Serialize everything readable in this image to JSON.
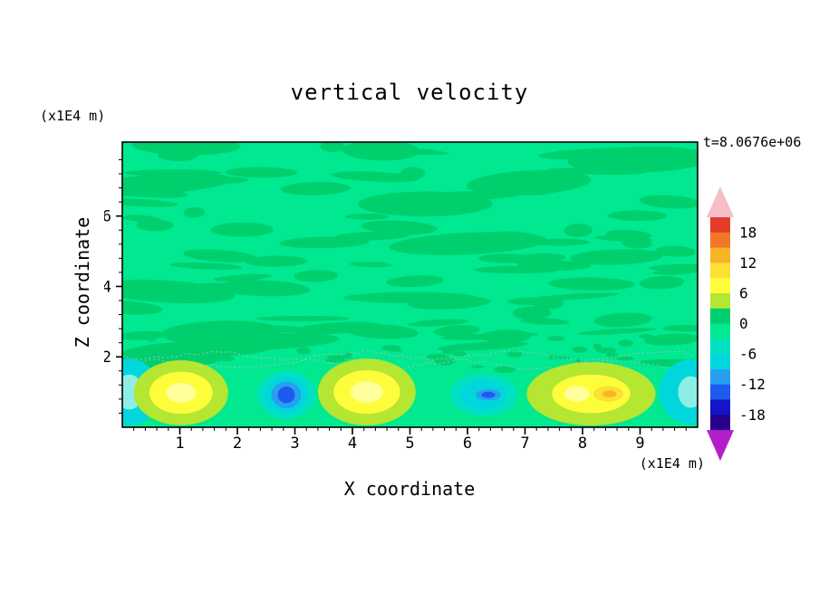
{
  "title": "vertical velocity",
  "annotation": {
    "time_label": "t=8.0676e+06"
  },
  "axes": {
    "x_label": "X coordinate",
    "x_unit": "(x1E4 m)",
    "y_label": "Z coordinate",
    "y_unit": "(x1E4 m)"
  },
  "palette": {
    "bg": "#00e890",
    "streak": "#00cf6e",
    "dots": "#a9bdb4",
    "yellowgreen": "#b4e632",
    "yellow": "#fdfd3c",
    "paleyellow": "#ffff9b",
    "gold": "#fae132",
    "orange": "#fab428",
    "aqua": "#00e1c3",
    "cyan": "#00d7dc",
    "pale": "#8deee6",
    "sky": "#28a0f0",
    "blue": "#1e5af0"
  },
  "colorbar": {
    "tick_labels": [
      "18",
      "12",
      "6",
      "0",
      "-6",
      "-12",
      "-18"
    ],
    "segments": [
      "#e63c28",
      "#f07828",
      "#fab428",
      "#fae132",
      "#fdfd3c",
      "#b4e632",
      "#00cf6e",
      "#00e890",
      "#00e1c3",
      "#00d7dc",
      "#28a0f0",
      "#1e5af0",
      "#1414c8",
      "#28008c"
    ],
    "arrow_top_color": "#f5bec8",
    "arrow_bottom_color": "#b41ec8"
  },
  "chart_data": {
    "type": "contour",
    "title": "vertical velocity",
    "xlabel": "X coordinate",
    "x_unit": "(x1E4 m)",
    "ylabel": "Z coordinate",
    "y_unit": "(x1E4 m)",
    "time_label": "t=8.0676e+06",
    "x_range": [
      0,
      10
    ],
    "y_range": [
      0,
      8.1
    ],
    "x_ticks": [
      1,
      2,
      3,
      4,
      5,
      6,
      7,
      8,
      9
    ],
    "y_ticks": [
      2,
      4,
      6
    ],
    "x_minor_step": 0.2,
    "y_minor_step": 0.4,
    "contour_interval": 3,
    "colorbar_labeled_levels": [
      18,
      12,
      6,
      0,
      -6,
      -12,
      -18
    ],
    "background_level": 0,
    "notes": "Field is near zero (spring green) through most of the domain with mottled slightly-negative green patches aloft; a row of alternating updraft (yellow) and downdraft (cyan/blue) cells sits along the lower boundary below z~2.",
    "texture": {
      "seed": 42,
      "streaks": 78,
      "patches": 15,
      "specks": 34
    },
    "squiggle_levels": [
      2.04,
      1.78
    ],
    "features": [
      {
        "kind": "downdraft",
        "peak_level": -6,
        "x": 0.12,
        "y": 1.0,
        "layers": [
          {
            "color": "cyan",
            "rx": 0.52,
            "ry": 0.95
          },
          {
            "color": "pale",
            "rx": 0.24,
            "ry": 0.5
          }
        ]
      },
      {
        "kind": "updraft",
        "peak_level": 9,
        "x": 1.02,
        "y": 0.98,
        "layers": [
          {
            "color": "yellowgreen",
            "rx": 0.82,
            "ry": 0.92
          },
          {
            "color": "yellow",
            "rx": 0.55,
            "ry": 0.6
          },
          {
            "color": "paleyellow",
            "rx": 0.26,
            "ry": 0.28
          }
        ]
      },
      {
        "kind": "downdraft",
        "peak_level": -12,
        "x": 2.85,
        "y": 0.92,
        "layers": [
          {
            "color": "aqua",
            "rx": 0.5,
            "ry": 0.68
          },
          {
            "color": "cyan",
            "rx": 0.38,
            "ry": 0.52
          },
          {
            "color": "sky",
            "rx": 0.26,
            "ry": 0.38
          },
          {
            "color": "blue",
            "rx": 0.15,
            "ry": 0.24
          }
        ]
      },
      {
        "kind": "updraft",
        "peak_level": 9,
        "x": 4.25,
        "y": 1.0,
        "layers": [
          {
            "color": "yellowgreen",
            "rx": 0.85,
            "ry": 0.95
          },
          {
            "color": "yellow",
            "rx": 0.58,
            "ry": 0.62
          },
          {
            "color": "paleyellow",
            "rx": 0.28,
            "ry": 0.3
          }
        ]
      },
      {
        "kind": "downdraft",
        "peak_level": -9,
        "x": 6.28,
        "y": 0.92,
        "layers": [
          {
            "color": "aqua",
            "rx": 0.58,
            "ry": 0.6
          },
          {
            "color": "cyan",
            "rx": 0.4,
            "ry": 0.42
          },
          {
            "color": "sky",
            "rx": 0.22,
            "ry": 0.16,
            "dx": 0.08
          },
          {
            "color": "blue",
            "rx": 0.12,
            "ry": 0.09,
            "dx": 0.08
          }
        ]
      },
      {
        "kind": "updraft",
        "peak_level": 12,
        "x": 8.15,
        "y": 0.95,
        "layers": [
          {
            "color": "yellowgreen",
            "rx": 1.12,
            "ry": 0.9
          },
          {
            "color": "yellow",
            "rx": 0.68,
            "ry": 0.55
          },
          {
            "color": "paleyellow",
            "rx": 0.22,
            "ry": 0.22,
            "dx": -0.25
          },
          {
            "color": "gold",
            "rx": 0.26,
            "ry": 0.22,
            "dx": 0.3
          },
          {
            "color": "orange",
            "rx": 0.12,
            "ry": 0.1,
            "dx": 0.32
          }
        ]
      },
      {
        "kind": "downdraft",
        "peak_level": -6,
        "x": 9.88,
        "y": 1.0,
        "layers": [
          {
            "color": "cyan",
            "rx": 0.55,
            "ry": 0.92
          },
          {
            "color": "pale",
            "rx": 0.22,
            "ry": 0.45
          }
        ]
      }
    ]
  }
}
